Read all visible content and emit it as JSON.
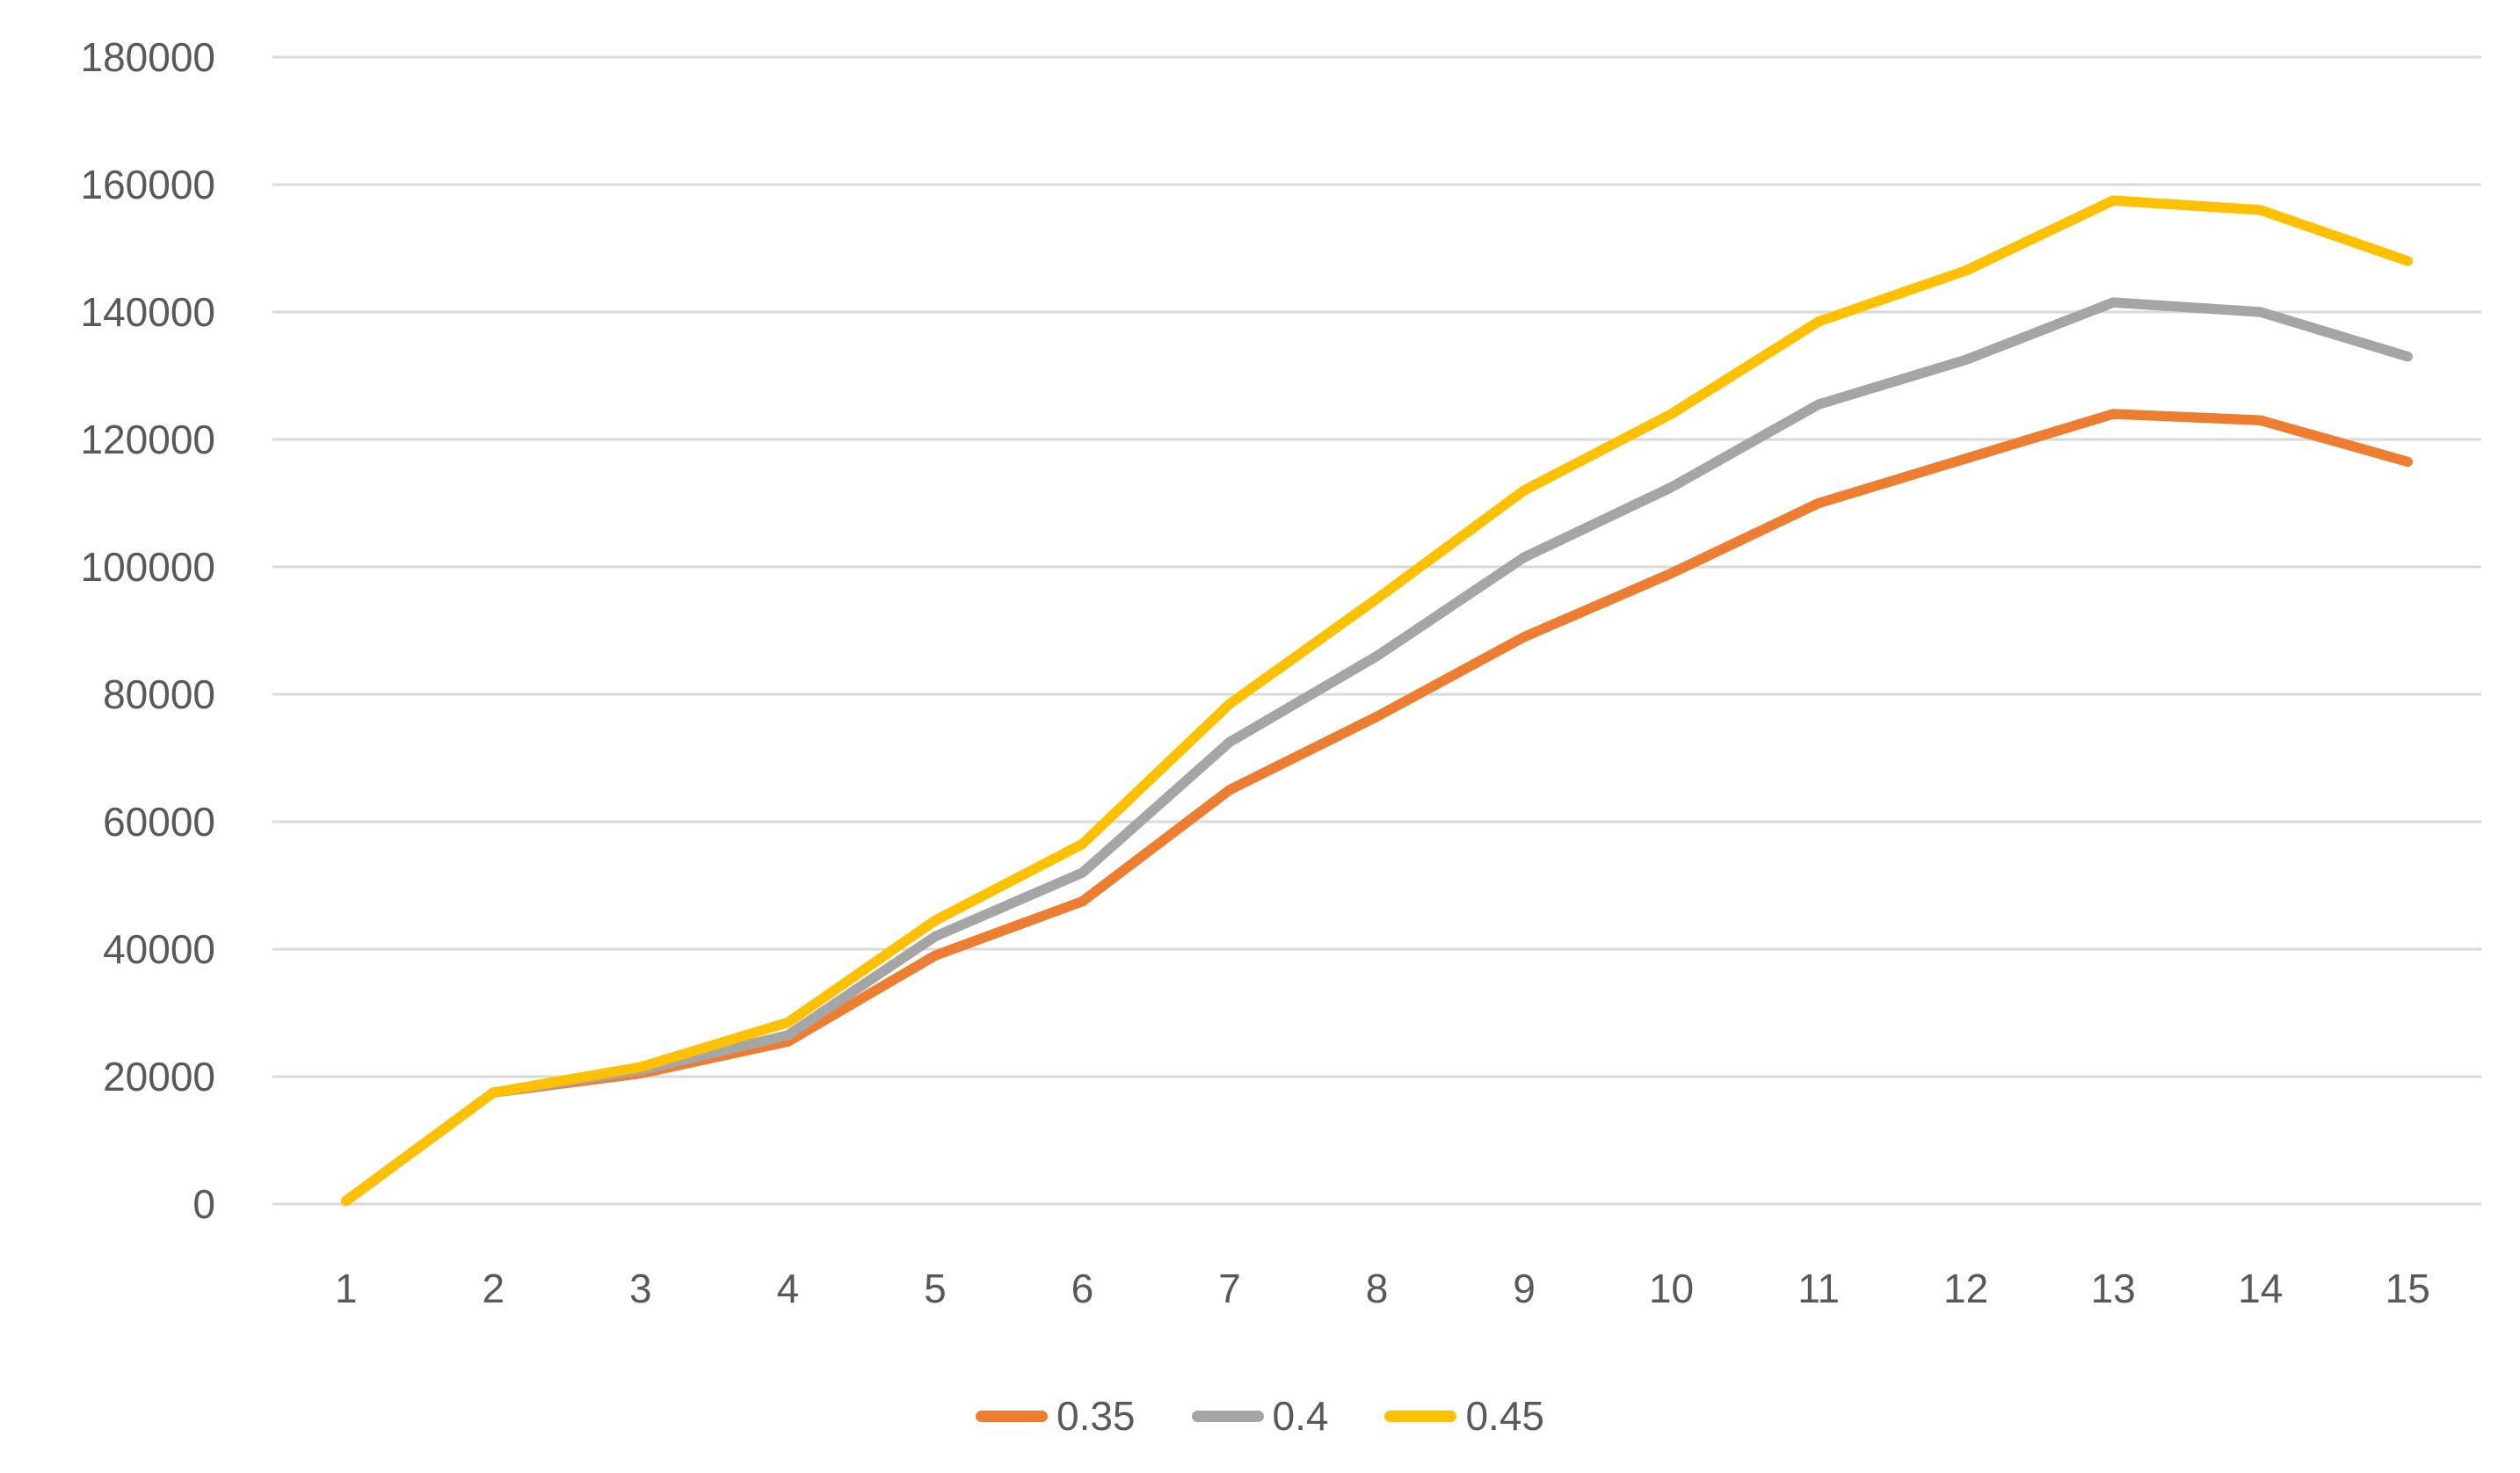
{
  "chart_data": {
    "type": "line",
    "categories": [
      1,
      2,
      3,
      4,
      5,
      6,
      7,
      8,
      9,
      10,
      11,
      12,
      13,
      14,
      15
    ],
    "series": [
      {
        "name": "0.35",
        "color": "#ED7D31",
        "values": [
          500,
          17500,
          20500,
          25500,
          39000,
          47500,
          65000,
          76500,
          89000,
          99000,
          110000,
          117000,
          124000,
          123000,
          116500
        ]
      },
      {
        "name": "0.4",
        "color": "#A5A5A5",
        "values": [
          500,
          17500,
          21000,
          26500,
          42000,
          52000,
          72500,
          86000,
          101500,
          112500,
          125500,
          132500,
          141500,
          140000,
          133000
        ]
      },
      {
        "name": "0.45",
        "color": "#FFC000",
        "values": [
          500,
          17500,
          21500,
          28500,
          44500,
          56500,
          78500,
          95000,
          112000,
          124000,
          138500,
          146500,
          157500,
          156000,
          148000
        ]
      }
    ],
    "title": "",
    "xlabel": "",
    "ylabel": "",
    "ylim": [
      0,
      180000
    ],
    "ytick_step": 20000,
    "yticks": [
      0,
      20000,
      40000,
      60000,
      80000,
      100000,
      120000,
      140000,
      160000,
      180000
    ],
    "grid": true,
    "gridline_color": "#D9D9D9",
    "tick_label_color": "#595959",
    "legend_position": "bottom",
    "legend_entries": [
      "0.35",
      "0.4",
      "0.45"
    ]
  }
}
